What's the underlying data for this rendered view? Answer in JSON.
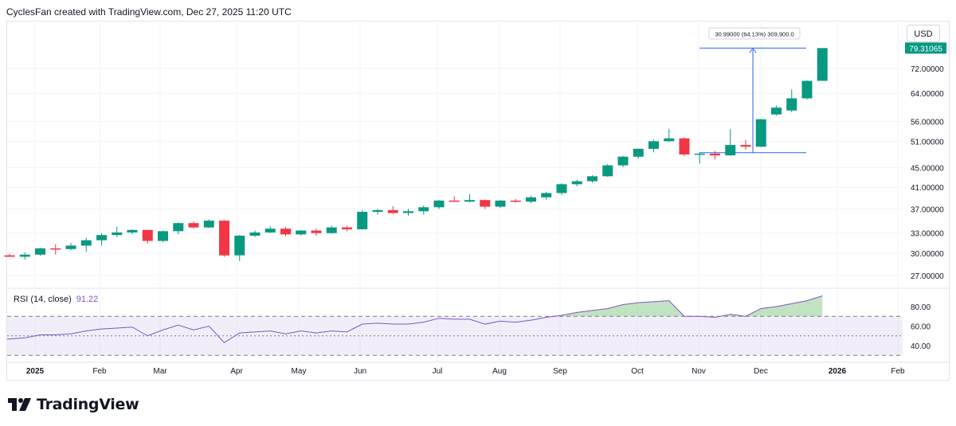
{
  "header": {
    "caption": "CyclesFan created with TradingView.com, Dec 27, 2025 11:20 UTC"
  },
  "currency_button": "USD",
  "measure_label": "30.99000 (64.13%) 309,900.0",
  "last_price_label": "79.31065",
  "rsi": {
    "label": "RSI (14, close)",
    "value": "91.22"
  },
  "brand": {
    "name": "TradingView"
  },
  "colors": {
    "up": "#089981",
    "down": "#f23645",
    "rsi_line": "#7e57c2",
    "measure": "#2962ff"
  },
  "chart_data": [
    {
      "type": "candlestick",
      "scale": "log",
      "price_ticks": [
        "72.00000",
        "64.00000",
        "56.00000",
        "51.00000",
        "45.00000",
        "41.00000",
        "37.00000",
        "33.00000",
        "30.00000",
        "27.00000"
      ],
      "x_ticks": [
        "2025",
        "Feb",
        "Mar",
        "Apr",
        "May",
        "Jun",
        "Jul",
        "Aug",
        "Sep",
        "Oct",
        "Nov",
        "Dec",
        "2026",
        "Feb"
      ],
      "candles": [
        {
          "o": 29.7,
          "h": 29.9,
          "l": 29.5,
          "c": 29.5
        },
        {
          "o": 29.5,
          "h": 30.1,
          "l": 29.1,
          "c": 29.8
        },
        {
          "o": 29.8,
          "h": 30.8,
          "l": 29.6,
          "c": 30.7
        },
        {
          "o": 30.7,
          "h": 31.3,
          "l": 29.8,
          "c": 30.6
        },
        {
          "o": 30.6,
          "h": 31.5,
          "l": 30.4,
          "c": 31.1
        },
        {
          "o": 31.1,
          "h": 32.3,
          "l": 30.2,
          "c": 31.9
        },
        {
          "o": 31.9,
          "h": 33.0,
          "l": 31.1,
          "c": 32.7
        },
        {
          "o": 32.7,
          "h": 34.0,
          "l": 32.4,
          "c": 33.1
        },
        {
          "o": 33.1,
          "h": 33.6,
          "l": 32.8,
          "c": 33.5
        },
        {
          "o": 33.5,
          "h": 33.5,
          "l": 31.4,
          "c": 31.8
        },
        {
          "o": 31.8,
          "h": 33.4,
          "l": 31.6,
          "c": 33.3
        },
        {
          "o": 33.3,
          "h": 34.7,
          "l": 32.8,
          "c": 34.6
        },
        {
          "o": 34.6,
          "h": 34.9,
          "l": 33.7,
          "c": 33.9
        },
        {
          "o": 33.9,
          "h": 35.2,
          "l": 33.8,
          "c": 35.0
        },
        {
          "o": 35.0,
          "h": 35.1,
          "l": 29.5,
          "c": 29.7
        },
        {
          "o": 29.7,
          "h": 32.7,
          "l": 28.9,
          "c": 32.6
        },
        {
          "o": 32.6,
          "h": 33.4,
          "l": 32.4,
          "c": 33.1
        },
        {
          "o": 33.1,
          "h": 34.1,
          "l": 33.0,
          "c": 33.7
        },
        {
          "o": 33.7,
          "h": 34.0,
          "l": 32.5,
          "c": 32.8
        },
        {
          "o": 32.8,
          "h": 33.5,
          "l": 32.6,
          "c": 33.4
        },
        {
          "o": 33.4,
          "h": 33.7,
          "l": 32.6,
          "c": 33.0
        },
        {
          "o": 33.0,
          "h": 34.2,
          "l": 32.9,
          "c": 33.9
        },
        {
          "o": 33.9,
          "h": 34.2,
          "l": 33.3,
          "c": 33.6
        },
        {
          "o": 33.6,
          "h": 36.8,
          "l": 33.6,
          "c": 36.5
        },
        {
          "o": 36.5,
          "h": 37.0,
          "l": 36.0,
          "c": 36.8
        },
        {
          "o": 36.8,
          "h": 37.5,
          "l": 36.1,
          "c": 36.3
        },
        {
          "o": 36.3,
          "h": 37.0,
          "l": 35.8,
          "c": 36.6
        },
        {
          "o": 36.6,
          "h": 37.6,
          "l": 36.0,
          "c": 37.3
        },
        {
          "o": 37.3,
          "h": 38.6,
          "l": 37.0,
          "c": 38.5
        },
        {
          "o": 38.5,
          "h": 39.3,
          "l": 38.3,
          "c": 38.3
        },
        {
          "o": 38.3,
          "h": 39.7,
          "l": 38.2,
          "c": 38.6
        },
        {
          "o": 38.6,
          "h": 38.7,
          "l": 37.0,
          "c": 37.4
        },
        {
          "o": 37.4,
          "h": 38.6,
          "l": 37.2,
          "c": 38.5
        },
        {
          "o": 38.5,
          "h": 38.8,
          "l": 38.1,
          "c": 38.3
        },
        {
          "o": 38.3,
          "h": 39.4,
          "l": 38.0,
          "c": 39.1
        },
        {
          "o": 39.1,
          "h": 40.1,
          "l": 38.6,
          "c": 39.9
        },
        {
          "o": 39.9,
          "h": 41.8,
          "l": 39.5,
          "c": 41.6
        },
        {
          "o": 41.6,
          "h": 42.5,
          "l": 41.2,
          "c": 42.2
        },
        {
          "o": 42.2,
          "h": 43.4,
          "l": 41.9,
          "c": 43.2
        },
        {
          "o": 43.2,
          "h": 45.8,
          "l": 43.1,
          "c": 45.5
        },
        {
          "o": 45.5,
          "h": 47.6,
          "l": 45.1,
          "c": 47.4
        },
        {
          "o": 47.4,
          "h": 49.3,
          "l": 46.9,
          "c": 49.2
        },
        {
          "o": 49.2,
          "h": 51.4,
          "l": 48.4,
          "c": 51.0
        },
        {
          "o": 51.0,
          "h": 54.1,
          "l": 50.8,
          "c": 51.7
        },
        {
          "o": 51.7,
          "h": 52.0,
          "l": 47.5,
          "c": 47.9
        },
        {
          "o": 47.9,
          "h": 48.4,
          "l": 45.9,
          "c": 48.1
        },
        {
          "o": 48.1,
          "h": 48.7,
          "l": 46.8,
          "c": 47.7
        },
        {
          "o": 47.7,
          "h": 54.0,
          "l": 47.6,
          "c": 50.1
        },
        {
          "o": 50.1,
          "h": 51.3,
          "l": 49.0,
          "c": 49.7
        },
        {
          "o": 49.7,
          "h": 56.7,
          "l": 49.6,
          "c": 56.6
        },
        {
          "o": 57.9,
          "h": 60.4,
          "l": 57.6,
          "c": 59.8
        },
        {
          "o": 59.0,
          "h": 65.2,
          "l": 58.5,
          "c": 62.5
        },
        {
          "o": 62.5,
          "h": 68.0,
          "l": 62.2,
          "c": 67.9
        },
        {
          "o": 67.9,
          "h": 79.3,
          "l": 67.9,
          "c": 79.3
        }
      ]
    },
    {
      "type": "line",
      "name": "RSI (14, close)",
      "y_ticks": [
        "80.00",
        "60.00",
        "40.00"
      ],
      "levels": [
        70,
        50,
        30
      ],
      "values": [
        46.5,
        48,
        51,
        51,
        52,
        55,
        57,
        58,
        59,
        50,
        56,
        61,
        56,
        60,
        43,
        53,
        54,
        55,
        52,
        55,
        53,
        55,
        54,
        62,
        63,
        62,
        62,
        64,
        68,
        67,
        67,
        62,
        65,
        64,
        66,
        69,
        71,
        74,
        76,
        78,
        82,
        84,
        85,
        86,
        70,
        70,
        69,
        72,
        70,
        78,
        80,
        83,
        86,
        91
      ]
    }
  ]
}
